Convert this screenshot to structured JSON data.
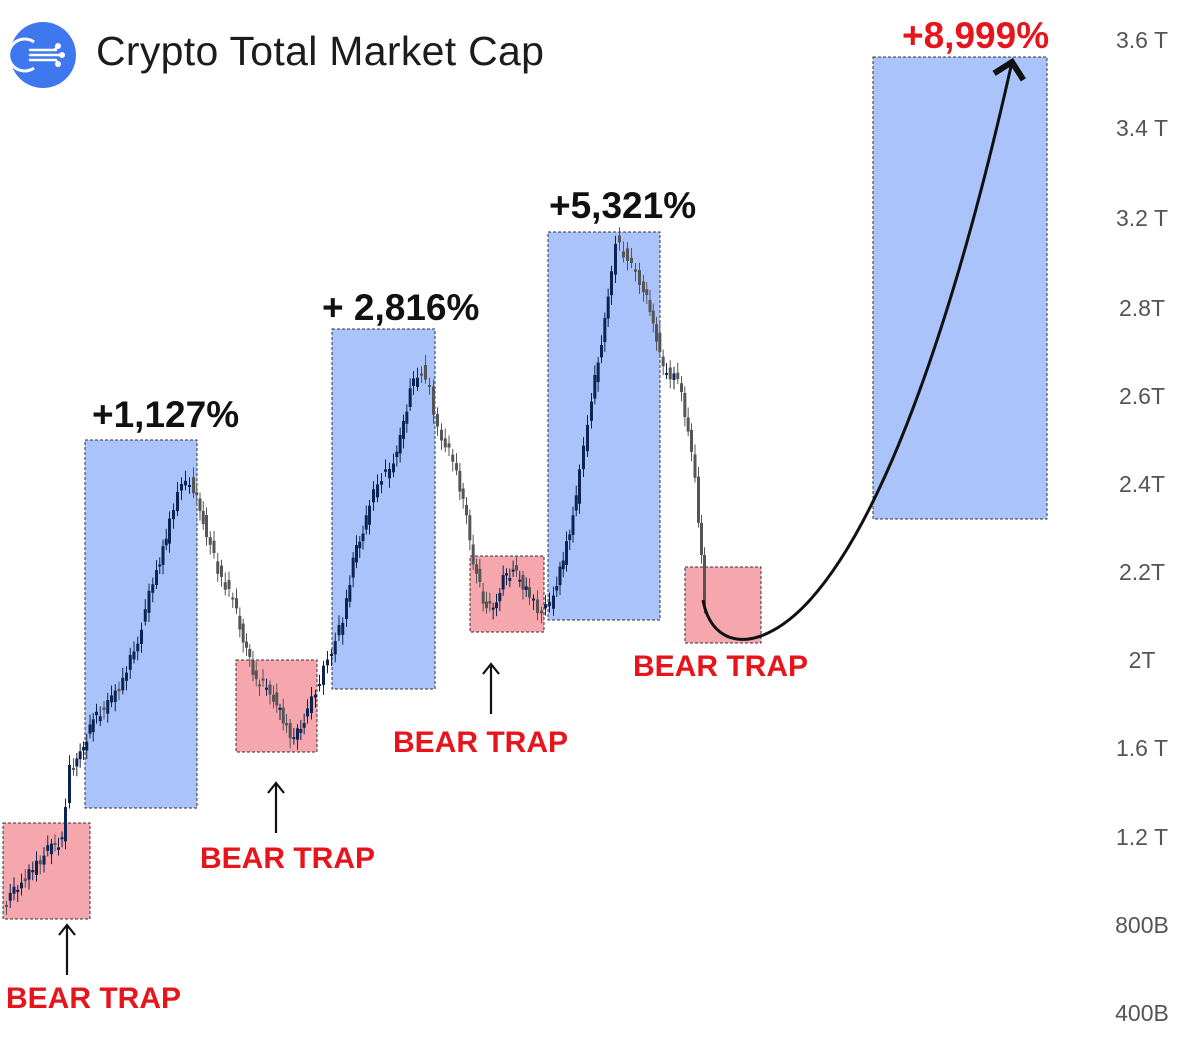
{
  "title": "Crypto Total Market Cap",
  "logo_icon": "crypto-logo-icon",
  "colors": {
    "rally_box": "#aac4fb",
    "trap_box": "#f6a7ae",
    "bull_candle": "#0d2452",
    "bear_candle": "#555555",
    "label_red": "#e8141c",
    "label_black": "#111111",
    "axis_text": "#555555",
    "logo": "#3f77ef"
  },
  "chart_data": {
    "type": "candlestick",
    "title": "Crypto Total Market Cap",
    "y_axis_position": "right",
    "y_ticks": [
      "3.6 T",
      "3.4 T",
      "3.2 T",
      "2.8T",
      "2.6T",
      "2.4T",
      "2.2T",
      "2T",
      "1.6 T",
      "1.2 T",
      "800B",
      "400B"
    ],
    "rally_annotations": [
      "+1,127%",
      "+ 2,816%",
      "+5,321%",
      "+8,999%"
    ],
    "trap_annotations": [
      "BEAR TRAP",
      "BEAR TRAP",
      "BEAR TRAP",
      "BEAR TRAP"
    ],
    "projection": "curved arrow from last bear trap up to +8,999% target"
  }
}
